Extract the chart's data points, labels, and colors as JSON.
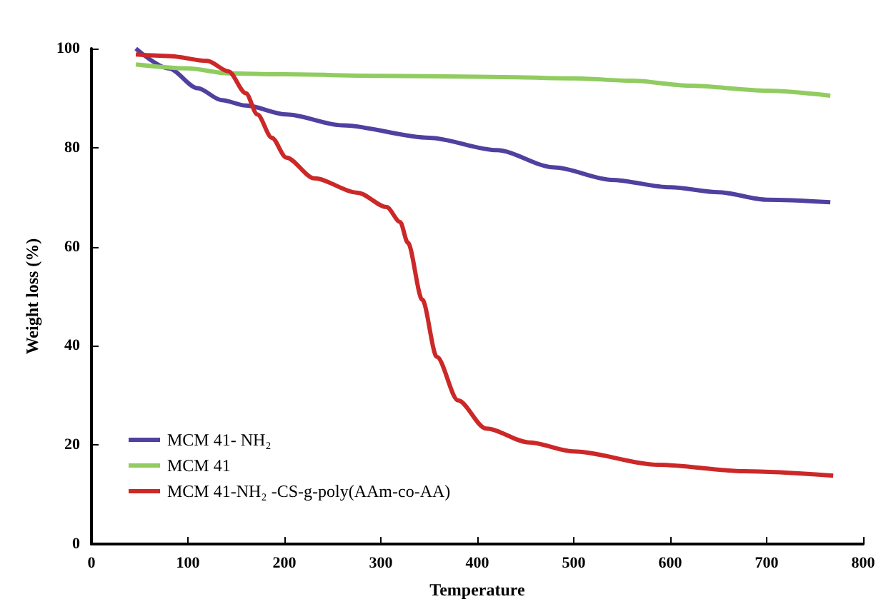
{
  "chart_data": {
    "type": "line",
    "xlabel": "Temperature",
    "ylabel": "Weight loss (%)",
    "xlim": [
      0,
      800
    ],
    "xticks": [
      0,
      100,
      200,
      300,
      400,
      500,
      600,
      700,
      800
    ],
    "ylim": [
      0,
      100
    ],
    "yticks": [
      0,
      20,
      40,
      60,
      80,
      100
    ],
    "grid": false,
    "legend": "bottom left",
    "marker": "none",
    "line_style": "solid",
    "series": [
      {
        "name": "MCM 41- NH₂",
        "color": "#5040a0",
        "x": [
          46,
          80,
          110,
          135,
          160,
          202,
          260,
          350,
          420,
          480,
          539,
          600,
          650,
          700,
          766
        ],
        "values": [
          100,
          96,
          92,
          89.6,
          88.5,
          86.7,
          84.5,
          82,
          79.5,
          76,
          73.5,
          72,
          71,
          69.5,
          69
        ]
      },
      {
        "name": "MCM 41",
        "color": "#90cc60",
        "x": [
          46,
          100,
          142,
          200,
          300,
          400,
          500,
          560,
          620,
          700,
          766
        ],
        "values": [
          96.8,
          96,
          95,
          94.8,
          94.5,
          94.3,
          94,
          93.5,
          92.5,
          91.5,
          90.5
        ]
      },
      {
        "name": "MCM 41-NH₂ -CS-g-poly(AAm-co-AA)",
        "color": "#cc2828",
        "x": [
          46,
          80,
          120,
          142,
          160,
          172,
          187,
          202,
          231,
          276,
          306,
          320,
          328,
          343,
          358,
          380,
          409,
          454,
          499,
          588,
          677,
          769
        ],
        "values": [
          98.8,
          98.5,
          97.5,
          95.4,
          91,
          86.7,
          82,
          78,
          73.8,
          70.9,
          68,
          65,
          60.8,
          49.3,
          37.8,
          29,
          23.3,
          20.5,
          18.7,
          16,
          14.7,
          13.8
        ]
      }
    ]
  }
}
